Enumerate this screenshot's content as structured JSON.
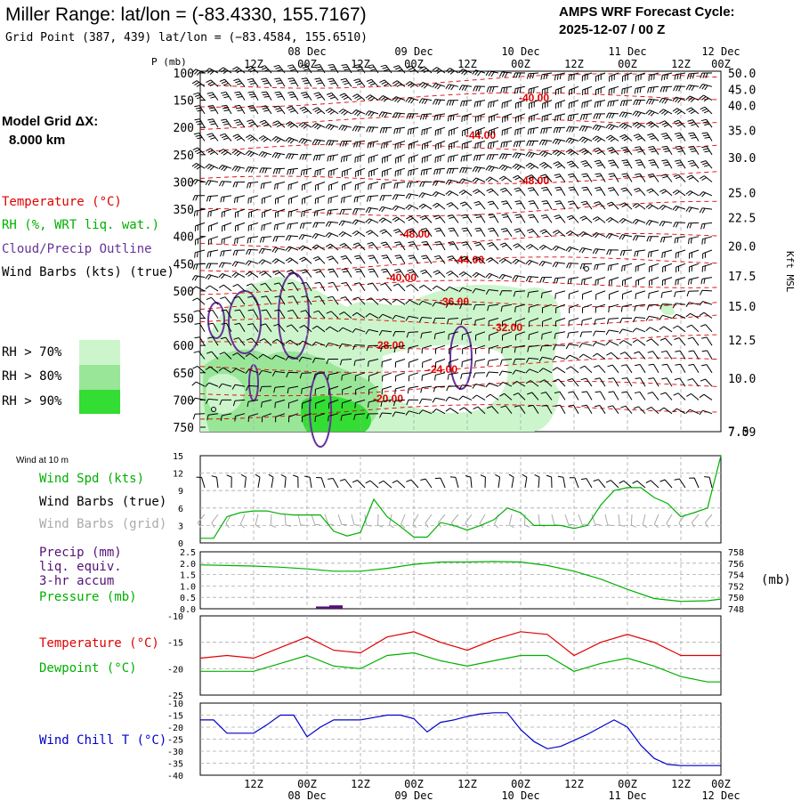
{
  "header": {
    "title": "Miller Range:  lat/lon = (-83.4330, 155.7167)",
    "grid_point": "Grid Point (387, 439) lat/lon = (−83.4584, 155.6510)",
    "cycle_line1": "AMPS WRF Forecast Cycle:",
    "cycle_line2": "2025-12-07 / 00  Z",
    "model_grid_label": "Model Grid ΔX:",
    "model_grid_value": "8.000 km"
  },
  "time_axis": {
    "hour_labels": [
      "12Z",
      "00Z",
      "12Z",
      "00Z",
      "12Z",
      "00Z",
      "12Z",
      "00Z",
      "12Z",
      "00Z"
    ],
    "day_labels": [
      "08 Dec",
      "09 Dec",
      "10 Dec",
      "11 Dec",
      "12 Dec"
    ]
  },
  "sounding_panel": {
    "p_label": "P (mb)",
    "pressure_ticks": [
      "100",
      "150",
      "200",
      "250",
      "300",
      "350",
      "400",
      "450",
      "500",
      "550",
      "600",
      "650",
      "700",
      "750"
    ],
    "height_ticks": [
      "50.0",
      "45.0",
      "40.0",
      "35.0",
      "30.0",
      "25.0",
      "22.5",
      "20.0",
      "17.5",
      "15.0",
      "12.5",
      "10.0",
      "7.5",
      "7.09"
    ],
    "height_axis_label": "Kft MSL",
    "legend": {
      "temperature": "Temperature (°C)",
      "rh": "RH (%, WRT liq. wat.)",
      "cloud": "Cloud/Precip Outline",
      "wind": "Wind Barbs (kts) (true)"
    },
    "rh_key": [
      "RH > 70%",
      "RH > 80%",
      "RH > 90%"
    ],
    "contour_labels": [
      "-40.00",
      "-44.00",
      "-48.00",
      "-48.00",
      "-44.00",
      "-40.00",
      "-36.00",
      "-32.00",
      "-28.00",
      "-24.00",
      "-20.00"
    ]
  },
  "wind_panel": {
    "title": "Wind at 10 m",
    "legend": {
      "speed": "Wind Spd (kts)",
      "barbs_true": "Wind Barbs (true)",
      "barbs_grid": "Wind Barbs (grid)"
    },
    "y_ticks": [
      "15",
      "12",
      "9",
      "6",
      "3",
      "0"
    ]
  },
  "precip_panel": {
    "legend": {
      "precip": "Precip (mm)",
      "liq": "liq. equiv.",
      "accum": "3-hr accum",
      "pressure": "Pressure (mb)"
    },
    "left_ticks": [
      "2.5",
      "2.0",
      "1.5",
      "1.0",
      "0.5",
      "0.0"
    ],
    "right_ticks": [
      "758",
      "756",
      "754",
      "752",
      "750",
      "748"
    ],
    "unit_label": "(mb)"
  },
  "temp_panel": {
    "legend": {
      "temperature": "Temperature (°C)",
      "dewpoint": "Dewpoint (°C)"
    },
    "y_ticks": [
      "-10",
      "-15",
      "-20",
      "-25"
    ]
  },
  "chill_panel": {
    "legend": "Wind Chill T (°C)",
    "y_ticks": [
      "-10",
      "-15",
      "-20",
      "-25",
      "-30",
      "-35",
      "-40"
    ]
  },
  "colors": {
    "temperature": "#e00000",
    "dewpoint": "#00b000",
    "rh70": "#ccf5cc",
    "rh80": "#99e699",
    "rh90": "#33dd33",
    "cloud": "#663399",
    "windchill": "#0000c8",
    "precip": "#551177",
    "grid_barbs": "#aaaaaa"
  },
  "chart_data": [
    {
      "type": "line",
      "title": "Wind at 10 m",
      "series": [
        {
          "name": "Wind Spd (kts)",
          "x": [
            0,
            3,
            6,
            9,
            12,
            15,
            18,
            21,
            24,
            27,
            30,
            33,
            36,
            39,
            42,
            45,
            48,
            51,
            54,
            57,
            60,
            63,
            66,
            69,
            72,
            75,
            78,
            81,
            84,
            87,
            90,
            93,
            96,
            99,
            102,
            105,
            108,
            111,
            114,
            117
          ],
          "values": [
            0.8,
            0.8,
            4.5,
            5.2,
            5.5,
            5.5,
            5.0,
            4.8,
            4.8,
            4.8,
            2.0,
            1.2,
            1.8,
            7.5,
            4.5,
            2.8,
            1.0,
            1.0,
            3.5,
            3.0,
            2.2,
            3.0,
            4.0,
            6.0,
            5.2,
            3.0,
            3.0,
            3.0,
            2.5,
            3.0,
            6.5,
            9.0,
            9.5,
            9.5,
            7.8,
            6.8,
            4.5,
            5.2,
            6.0,
            15.0
          ]
        }
      ],
      "ylabel": "kts",
      "ylim": [
        0,
        15
      ]
    },
    {
      "type": "bar",
      "title": "Precip (mm) liq. equiv. 3-hr accum",
      "x": [
        24,
        27
      ],
      "values": [
        0.1,
        0.15
      ],
      "ylim": [
        0,
        2.5
      ]
    },
    {
      "type": "line",
      "title": "Pressure (mb)",
      "series": [
        {
          "name": "Pressure (mb)",
          "x": [
            0,
            6,
            12,
            18,
            24,
            30,
            36,
            42,
            48,
            54,
            60,
            66,
            72,
            78,
            84,
            90,
            96,
            102,
            108,
            114,
            117
          ],
          "values": [
            755.7,
            755.6,
            755.5,
            755.3,
            755.0,
            754.6,
            754.6,
            755.1,
            755.8,
            756.2,
            756.2,
            756.3,
            756.2,
            755.6,
            754.6,
            753.2,
            751.4,
            749.8,
            749.3,
            749.4,
            749.7
          ]
        }
      ],
      "ylim": [
        748,
        758
      ]
    },
    {
      "type": "line",
      "title": "Temperature and Dewpoint",
      "series": [
        {
          "name": "Temperature (°C)",
          "x": [
            0,
            6,
            12,
            18,
            24,
            30,
            36,
            42,
            48,
            54,
            60,
            66,
            72,
            78,
            84,
            90,
            96,
            102,
            108,
            114,
            117
          ],
          "values": [
            -18,
            -17.5,
            -18,
            -16,
            -14,
            -16.5,
            -17,
            -14,
            -13,
            -15,
            -16.5,
            -14.5,
            -13,
            -13.5,
            -17.5,
            -15,
            -13.5,
            -15,
            -17.5,
            -17.5,
            -17.5
          ]
        },
        {
          "name": "Dewpoint (°C)",
          "x": [
            0,
            6,
            12,
            18,
            24,
            30,
            36,
            42,
            48,
            54,
            60,
            66,
            72,
            78,
            84,
            90,
            96,
            102,
            108,
            114,
            117
          ],
          "values": [
            -20.5,
            -20.5,
            -20.5,
            -19,
            -17.5,
            -19.5,
            -20,
            -17.5,
            -17,
            -18.5,
            -19.5,
            -18.5,
            -17.5,
            -17.5,
            -20.5,
            -19,
            -18,
            -19.5,
            -21.5,
            -22.5,
            -22.5
          ]
        }
      ],
      "ylim": [
        -25,
        -10
      ]
    },
    {
      "type": "line",
      "title": "Wind Chill T (°C)",
      "series": [
        {
          "name": "Wind Chill T (°C)",
          "x": [
            0,
            3,
            6,
            9,
            12,
            15,
            18,
            21,
            24,
            27,
            30,
            33,
            36,
            39,
            42,
            45,
            48,
            51,
            54,
            57,
            60,
            63,
            66,
            69,
            72,
            75,
            78,
            81,
            84,
            87,
            90,
            93,
            96,
            99,
            102,
            105,
            108,
            111,
            114,
            117
          ],
          "values": [
            -17,
            -17,
            -22.5,
            -22.5,
            -22.5,
            -19,
            -15,
            -15,
            -24,
            -20,
            -17,
            -17,
            -17,
            -16,
            -15,
            -15,
            -16.5,
            -22,
            -18,
            -17,
            -15.5,
            -14.5,
            -14,
            -14,
            -21,
            -26,
            -29,
            -28,
            -25.5,
            -23,
            -20,
            -17,
            -20,
            -27.5,
            -33,
            -35.5,
            -36,
            -36,
            -36,
            -36
          ]
        }
      ],
      "ylim": [
        -40,
        -10
      ]
    }
  ]
}
